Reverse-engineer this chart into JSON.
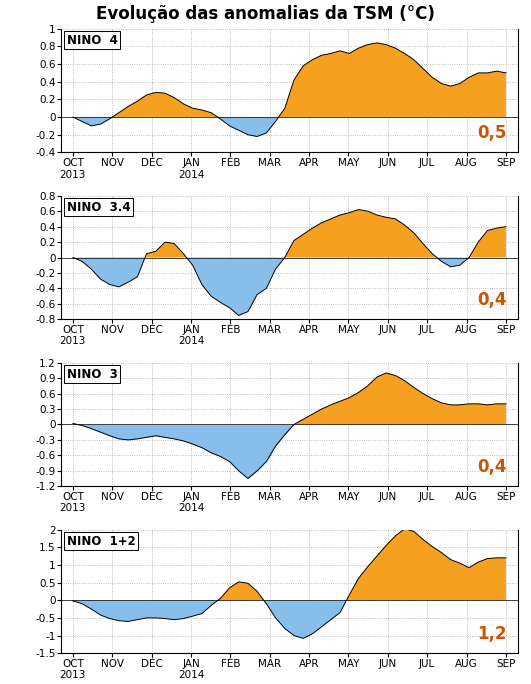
{
  "title": "Evolução das anomalias da TSM (°C)",
  "orange_color": "#F5A020",
  "blue_color": "#87BEEB",
  "line_color": "#000000",
  "bg_color": "#FFFFFF",
  "grid_color": "#AAAAAA",
  "panels": [
    {
      "label": "NINO  4",
      "ylim": [
        -0.4,
        1.0
      ],
      "yticks": [
        -0.4,
        -0.2,
        0.0,
        0.2,
        0.4,
        0.6,
        0.8,
        1.0
      ],
      "last_value": "0,5",
      "data": [
        0.0,
        -0.05,
        -0.1,
        -0.08,
        -0.02,
        0.05,
        0.12,
        0.18,
        0.25,
        0.28,
        0.27,
        0.22,
        0.15,
        0.1,
        0.08,
        0.05,
        -0.02,
        -0.1,
        -0.15,
        -0.2,
        -0.22,
        -0.18,
        -0.05,
        0.1,
        0.42,
        0.58,
        0.65,
        0.7,
        0.72,
        0.75,
        0.72,
        0.78,
        0.82,
        0.84,
        0.82,
        0.78,
        0.72,
        0.65,
        0.55,
        0.45,
        0.38,
        0.35,
        0.38,
        0.45,
        0.5,
        0.5,
        0.52,
        0.5
      ]
    },
    {
      "label": "NINO  3.4",
      "ylim": [
        -0.8,
        0.8
      ],
      "yticks": [
        -0.8,
        -0.6,
        -0.4,
        -0.2,
        0.0,
        0.2,
        0.4,
        0.6,
        0.8
      ],
      "last_value": "0,4",
      "data": [
        0.0,
        -0.05,
        -0.15,
        -0.28,
        -0.35,
        -0.38,
        -0.32,
        -0.25,
        0.05,
        0.08,
        0.2,
        0.18,
        0.05,
        -0.1,
        -0.35,
        -0.5,
        -0.58,
        -0.65,
        -0.75,
        -0.7,
        -0.48,
        -0.4,
        -0.15,
        0.0,
        0.22,
        0.3,
        0.38,
        0.45,
        0.5,
        0.55,
        0.58,
        0.62,
        0.6,
        0.55,
        0.52,
        0.5,
        0.42,
        0.32,
        0.18,
        0.05,
        -0.05,
        -0.12,
        -0.1,
        0.0,
        0.2,
        0.35,
        0.38,
        0.4
      ]
    },
    {
      "label": "NINO  3",
      "ylim": [
        -1.2,
        1.2
      ],
      "yticks": [
        -1.2,
        -0.9,
        -0.6,
        -0.3,
        0.0,
        0.3,
        0.6,
        0.9,
        1.2
      ],
      "last_value": "0,4",
      "data": [
        0.02,
        -0.02,
        -0.08,
        -0.15,
        -0.22,
        -0.28,
        -0.3,
        -0.28,
        -0.25,
        -0.22,
        -0.25,
        -0.28,
        -0.32,
        -0.38,
        -0.45,
        -0.55,
        -0.62,
        -0.72,
        -0.9,
        -1.05,
        -0.9,
        -0.72,
        -0.42,
        -0.2,
        0.0,
        0.1,
        0.2,
        0.3,
        0.38,
        0.45,
        0.52,
        0.62,
        0.75,
        0.92,
        1.0,
        0.95,
        0.85,
        0.72,
        0.6,
        0.5,
        0.42,
        0.38,
        0.38,
        0.4,
        0.4,
        0.38,
        0.4,
        0.4
      ]
    },
    {
      "label": "NINO  1+2",
      "ylim": [
        -1.5,
        2.0
      ],
      "yticks": [
        -1.5,
        -1.0,
        -0.5,
        0.0,
        0.5,
        1.0,
        1.5,
        2.0
      ],
      "last_value": "1,2",
      "data": [
        -0.02,
        -0.1,
        -0.25,
        -0.42,
        -0.52,
        -0.58,
        -0.6,
        -0.55,
        -0.5,
        -0.5,
        -0.52,
        -0.55,
        -0.52,
        -0.45,
        -0.38,
        -0.15,
        0.05,
        0.35,
        0.52,
        0.48,
        0.25,
        -0.1,
        -0.5,
        -0.8,
        -1.0,
        -1.08,
        -0.95,
        -0.75,
        -0.55,
        -0.35,
        0.15,
        0.62,
        0.95,
        1.25,
        1.55,
        1.82,
        2.02,
        1.95,
        1.72,
        1.52,
        1.35,
        1.15,
        1.05,
        0.92,
        1.08,
        1.18,
        1.2,
        1.2
      ]
    }
  ],
  "x_labels": [
    "OCT\n2013",
    "NOV",
    "DÉC",
    "JAN\n2014",
    "FÉB",
    "MAR",
    "APR",
    "MAY",
    "JUN",
    "JUL",
    "AUG",
    "SEP"
  ],
  "n_points": 48
}
